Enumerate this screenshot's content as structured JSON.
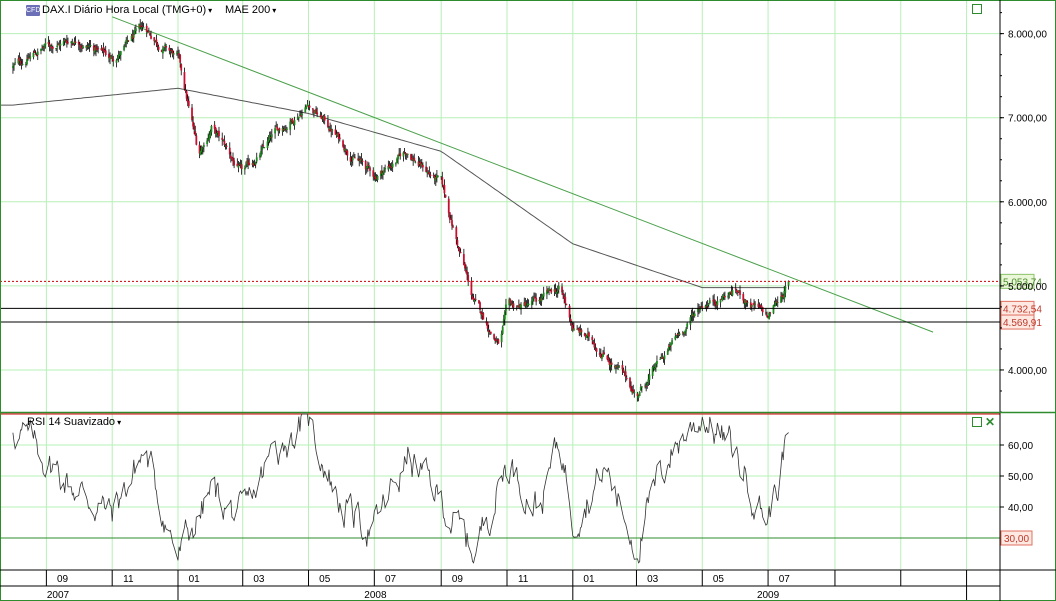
{
  "header": {
    "symbol_badge": "CFD",
    "instrument": "DAX.I Diário Hora Local (TMG+0)",
    "indicator": "MAE 200",
    "rsi_label": "RSI 14 Suavizado"
  },
  "colors": {
    "grid": "#b6f0b6",
    "up_candle": "#1e8a1e",
    "down_candle": "#c8102e",
    "wick": "#000000",
    "trendline": "#4aa04a",
    "ma": "#555555",
    "price_dotted": "#cc0000",
    "support": "#000000",
    "rsi_line": "#333333",
    "rsi_bands": "#2e8b2e",
    "label_green_bg": "#eaf7d8",
    "label_red_bg": "#fde8e2"
  },
  "chart_data": [
    {
      "type": "candlestick",
      "title": "DAX.I Diário Hora Local (TMG+0)",
      "y_ticks": [
        "4.000,00",
        "5.000,00",
        "6.000,00",
        "7.000,00",
        "8.000,00"
      ],
      "y_tick_values": [
        4000,
        5000,
        6000,
        7000,
        8000
      ],
      "ylim": [
        3500,
        8400
      ],
      "x_months": [
        "09",
        "11",
        "01",
        "03",
        "05",
        "07",
        "09",
        "11",
        "01",
        "03",
        "05",
        "07"
      ],
      "x_years": [
        "2007",
        "2008",
        "2009"
      ],
      "series": [
        {
          "name": "DAX.I",
          "keypoints": [
            {
              "date": "2007-08",
              "close": 7600
            },
            {
              "date": "2007-09",
              "close": 7850
            },
            {
              "date": "2007-10",
              "close": 7950
            },
            {
              "date": "2007-11",
              "close": 7700
            },
            {
              "date": "2007-12",
              "close": 8050
            },
            {
              "date": "2008-01",
              "close": 7700
            },
            {
              "date": "2008-01-20",
              "close": 6550
            },
            {
              "date": "2008-02",
              "close": 6900
            },
            {
              "date": "2008-03",
              "close": 6300
            },
            {
              "date": "2008-04",
              "close": 6800
            },
            {
              "date": "2008-05",
              "close": 7200
            },
            {
              "date": "2008-06",
              "close": 6700
            },
            {
              "date": "2008-07",
              "close": 6300
            },
            {
              "date": "2008-08",
              "close": 6600
            },
            {
              "date": "2008-09",
              "close": 6200
            },
            {
              "date": "2008-10",
              "close": 4800
            },
            {
              "date": "2008-10-25",
              "close": 4300
            },
            {
              "date": "2008-11",
              "close": 4700
            },
            {
              "date": "2008-12",
              "close": 4800
            },
            {
              "date": "2008-12-20",
              "close": 4950
            },
            {
              "date": "2009-01",
              "close": 4500
            },
            {
              "date": "2009-02",
              "close": 4200
            },
            {
              "date": "2009-03",
              "close": 3700
            },
            {
              "date": "2009-04",
              "close": 4250
            },
            {
              "date": "2009-05",
              "close": 4800
            },
            {
              "date": "2009-06",
              "close": 4950
            },
            {
              "date": "2009-07",
              "close": 4600
            },
            {
              "date": "2009-07-20",
              "close": 5053.74
            }
          ]
        },
        {
          "name": "MAE 200",
          "keypoints": [
            {
              "date": "2007-08",
              "value": 7150
            },
            {
              "date": "2008-01",
              "value": 7350
            },
            {
              "date": "2008-05",
              "value": 7050
            },
            {
              "date": "2008-09",
              "value": 6600
            },
            {
              "date": "2009-01",
              "value": 5500
            },
            {
              "date": "2009-05",
              "value": 4980
            },
            {
              "date": "2009-07-20",
              "value": 4980
            }
          ]
        }
      ],
      "trendline": {
        "start": {
          "date": "2007-11",
          "value": 8200
        },
        "end": {
          "date": "2009-12",
          "value": 4450
        }
      },
      "levels": [
        {
          "value": 5053.74,
          "label": "5.053,74",
          "style": "dotted",
          "color": "#cc0000",
          "label_bg": "green"
        },
        {
          "value": 4732.54,
          "label": "4.732,54",
          "style": "solid",
          "color": "#000000",
          "label_bg": "red"
        },
        {
          "value": 4569.91,
          "label": "4.569,91",
          "style": "solid",
          "color": "#000000",
          "label_bg": "red"
        }
      ],
      "grid": true
    },
    {
      "type": "line",
      "title": "RSI 14 Suavizado",
      "y_ticks": [
        "40,00",
        "50,00",
        "60,00"
      ],
      "y_tick_values": [
        40,
        50,
        60
      ],
      "ylim": [
        20,
        70
      ],
      "levels": [
        {
          "value": 70,
          "color": "#cc0000"
        },
        {
          "value": 30,
          "label": "30,00",
          "color": "#2e8b2e",
          "label_bg": "red"
        }
      ],
      "series": [
        {
          "name": "RSI 14 Suavizado",
          "keypoints": [
            {
              "date": "2007-08",
              "value": 66
            },
            {
              "date": "2007-10",
              "value": 45
            },
            {
              "date": "2007-11",
              "value": 38
            },
            {
              "date": "2007-12",
              "value": 58
            },
            {
              "date": "2008-01",
              "value": 24
            },
            {
              "date": "2008-02",
              "value": 45
            },
            {
              "date": "2008-03",
              "value": 35
            },
            {
              "date": "2008-04",
              "value": 60
            },
            {
              "date": "2008-05",
              "value": 68
            },
            {
              "date": "2008-06",
              "value": 40
            },
            {
              "date": "2008-07",
              "value": 33
            },
            {
              "date": "2008-08",
              "value": 56
            },
            {
              "date": "2008-09",
              "value": 42
            },
            {
              "date": "2008-10",
              "value": 25
            },
            {
              "date": "2008-11",
              "value": 55
            },
            {
              "date": "2008-12",
              "value": 40
            },
            {
              "date": "2008-12-20",
              "value": 62
            },
            {
              "date": "2009-01",
              "value": 38
            },
            {
              "date": "2009-02",
              "value": 52
            },
            {
              "date": "2009-03",
              "value": 28
            },
            {
              "date": "2009-04",
              "value": 58
            },
            {
              "date": "2009-05",
              "value": 70
            },
            {
              "date": "2009-06",
              "value": 57
            },
            {
              "date": "2009-07",
              "value": 36
            },
            {
              "date": "2009-07-20",
              "value": 64
            }
          ]
        }
      ],
      "grid": true
    }
  ]
}
